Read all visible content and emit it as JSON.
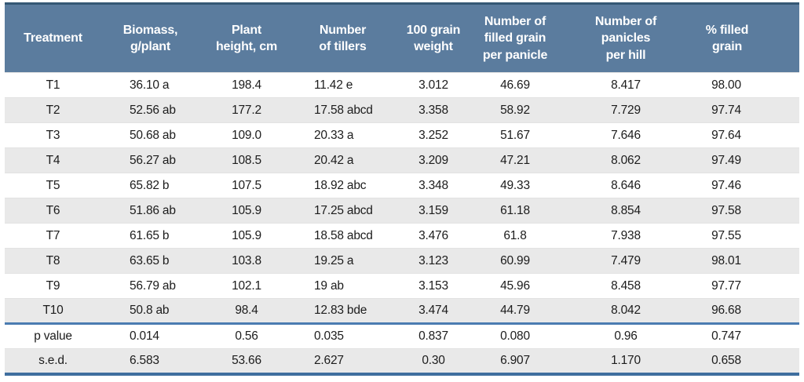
{
  "table": {
    "columns": [
      "Treatment",
      "Biomass,\ng/plant",
      "Plant\nheight, cm",
      "Number\nof tillers",
      "100 grain\nweight",
      "Number of\nfilled grain\nper panicle",
      "Number of\npanicles\nper hill",
      "% filled\ngrain"
    ],
    "rows": [
      {
        "label": "T1",
        "values": [
          "36.10 a",
          "198.4",
          "11.42 e",
          "3.012",
          "46.69",
          "8.417",
          "98.00"
        ]
      },
      {
        "label": "T2",
        "values": [
          "52.56 ab",
          "177.2",
          "17.58 abcd",
          "3.358",
          "58.92",
          "7.729",
          "97.74"
        ]
      },
      {
        "label": "T3",
        "values": [
          "50.68 ab",
          "109.0",
          "20.33 a",
          "3.252",
          "51.67",
          "7.646",
          "97.64"
        ]
      },
      {
        "label": "T4",
        "values": [
          "56.27 ab",
          "108.5",
          "20.42 a",
          "3.209",
          "47.21",
          "8.062",
          "97.49"
        ]
      },
      {
        "label": "T5",
        "values": [
          "65.82 b",
          "107.5",
          "18.92 abc",
          "3.348",
          "49.33",
          "8.646",
          "97.46"
        ]
      },
      {
        "label": "T6",
        "values": [
          "51.86 ab",
          "105.9",
          "17.25 abcd",
          "3.159",
          "61.18",
          "8.854",
          "97.58"
        ]
      },
      {
        "label": "T7",
        "values": [
          "61.65 b",
          "105.9",
          "18.58 abcd",
          "3.476",
          "61.8",
          "7.938",
          "97.55"
        ]
      },
      {
        "label": "T8",
        "values": [
          "63.65 b",
          "103.8",
          "19.25 a",
          "3.123",
          "60.99",
          "7.479",
          "98.01"
        ]
      },
      {
        "label": "T9",
        "values": [
          "56.79 ab",
          "102.1",
          "19 ab",
          "3.153",
          "45.96",
          "8.458",
          "97.77"
        ]
      },
      {
        "label": "T10",
        "values": [
          "50.8 ab",
          "98.4",
          "12.83 bde",
          "3.474",
          "44.79",
          "8.042",
          "96.68"
        ]
      }
    ],
    "stat_rows": [
      {
        "label": "p value",
        "values": [
          "0.014",
          "0.56",
          "0.035",
          "0.837",
          "0.080",
          "0.96",
          "0.747"
        ]
      },
      {
        "label": "s.e.d.",
        "values": [
          "6.583",
          "53.66",
          "2.627",
          "0.30",
          "6.907",
          "1.170",
          "0.658"
        ]
      }
    ],
    "colors": {
      "header_bg": "#5b7c9e",
      "header_text": "#ffffff",
      "header_top_border": "#355875",
      "stripe": "#e9e9e9",
      "divider_blue": "#4b7cb1",
      "bottom_border": "#3f6e9e",
      "text": "#1c1c1c"
    }
  }
}
